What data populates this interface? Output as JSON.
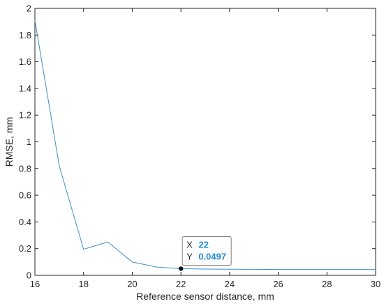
{
  "chart_data": {
    "type": "line",
    "title": "",
    "xlabel": "Reference sensor distance, mm",
    "ylabel": "RMSE, mm",
    "xlim": [
      16,
      30
    ],
    "ylim": [
      0,
      2
    ],
    "xticks": [
      "16",
      "18",
      "20",
      "22",
      "24",
      "26",
      "28",
      "30"
    ],
    "yticks": [
      "0",
      "0.2",
      "0.4",
      "0.6",
      "0.8",
      "1",
      "1.2",
      "1.4",
      "1.6",
      "1.8",
      "2"
    ],
    "grid": false,
    "series": [
      {
        "color": "#3a8ec9",
        "x": [
          16,
          17,
          18,
          19,
          20,
          21,
          22,
          23,
          24,
          25,
          26,
          27,
          28,
          29,
          30
        ],
        "y": [
          1.91,
          0.82,
          0.195,
          0.25,
          0.1,
          0.062,
          0.0497,
          0.047,
          0.046,
          0.045,
          0.044,
          0.044,
          0.044,
          0.044,
          0.044
        ]
      }
    ],
    "datatip": {
      "x": 22,
      "y": 0.0497,
      "x_label": "X",
      "y_label": "Y",
      "x_text": "22",
      "y_text": "0.0497",
      "value_color": "#1e88d6"
    }
  }
}
